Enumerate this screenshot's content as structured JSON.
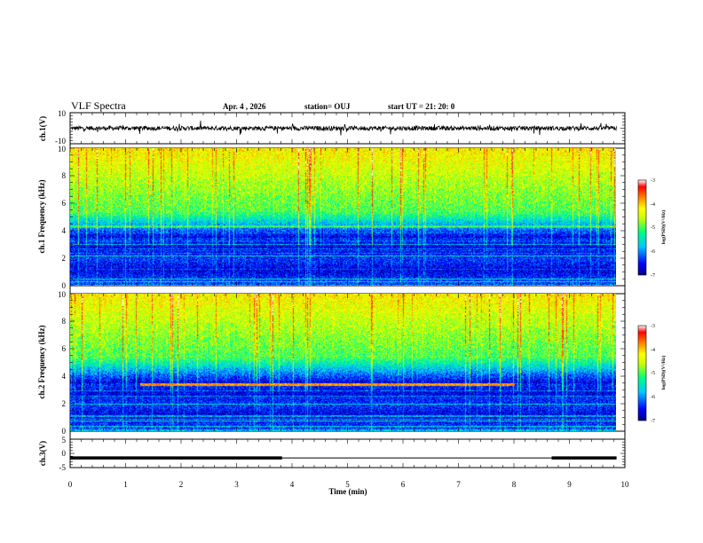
{
  "header": {
    "title": "VLF Spectra",
    "date": "Apr. 4 , 2026",
    "station": "station= OUJ",
    "start": "start  UT =   21: 20: 0"
  },
  "chart_data": [
    {
      "type": "line",
      "panel": "ch1-waveform",
      "ylabel": "ch.1(V)",
      "ylim": [
        -10,
        10
      ],
      "ytick_labels": [
        "10",
        "-10"
      ],
      "xlim": [
        0,
        10
      ],
      "data_extent_min": 9.85,
      "baseline": 0,
      "noise_amplitude": 1.4,
      "color": "#000000"
    },
    {
      "type": "heatmap",
      "panel": "ch1-spectrogram",
      "ylabel": "ch.1 Frequency (kHz)",
      "ylim": [
        0,
        10
      ],
      "ytick_labels": [
        "0",
        "2",
        "4",
        "6",
        "8",
        "10"
      ],
      "xlim": [
        0,
        10
      ],
      "data_extent_min": 9.85,
      "colorbar": {
        "label": "log(PSD)(V²/Hz)",
        "range": [
          -7,
          -3
        ],
        "tick_labels": [
          "-3",
          "-4",
          "-5",
          "-6",
          "-7"
        ],
        "colors": [
          "#000080",
          "#0000ff",
          "#00c8ff",
          "#00ff80",
          "#c8ff00",
          "#ffff00",
          "#ff8000",
          "#ff0000",
          "#ffffff"
        ]
      }
    },
    {
      "type": "heatmap",
      "panel": "ch2-spectrogram",
      "ylabel": "ch.2 Frequency (kHz)",
      "ylim": [
        0,
        10
      ],
      "ytick_labels": [
        "0",
        "2",
        "4",
        "6",
        "8",
        "10"
      ],
      "xlim": [
        0,
        10
      ],
      "data_extent_min": 9.85,
      "tone": {
        "freq_khz": 3.4,
        "start_min": 1.25,
        "end_min": 8.0
      },
      "colorbar": {
        "label": "log(PSD)(V²/Hz)",
        "range": [
          -7,
          -3
        ],
        "tick_labels": [
          "-3",
          "-4",
          "-5",
          "-6",
          "-7"
        ],
        "colors": [
          "#000080",
          "#0000ff",
          "#00c8ff",
          "#00ff80",
          "#c8ff00",
          "#ffff00",
          "#ff8000",
          "#ff0000",
          "#ffffff"
        ]
      }
    },
    {
      "type": "line",
      "panel": "ch3-status",
      "ylabel": "ch.3(V)",
      "ylim": [
        -5,
        5
      ],
      "ytick_labels": [
        "5",
        "0",
        "-5"
      ],
      "xlim": [
        0,
        10
      ],
      "xlabel": "Time  (min)",
      "xtick_labels": [
        "0",
        "1",
        "2",
        "3",
        "4",
        "5",
        "6",
        "7",
        "8",
        "9",
        "10"
      ],
      "segments": [
        {
          "start_min": 0.0,
          "end_min": 3.82,
          "value": -1.6,
          "thickness": "thick"
        },
        {
          "start_min": 3.82,
          "end_min": 8.68,
          "value": -1.6,
          "thickness": "thin"
        },
        {
          "start_min": 8.68,
          "end_min": 9.85,
          "value": -1.6,
          "thickness": "thick"
        }
      ]
    }
  ]
}
